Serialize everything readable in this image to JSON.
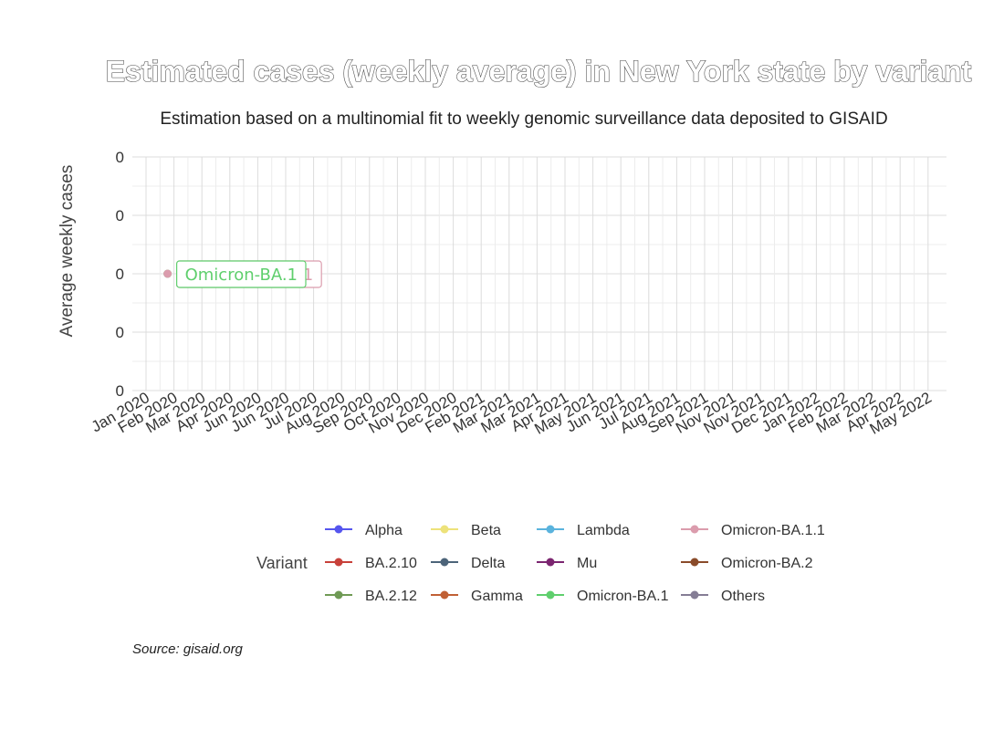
{
  "chart_data": {
    "type": "line",
    "title": "Estimated cases (weekly average) in New York state by variant",
    "subtitle": "Estimation based on a multinomial fit to weekly genomic surveillance data deposited to GISAID",
    "xlabel": "",
    "ylabel": "Average weekly cases",
    "caption": "Source: gisaid.org",
    "x_ticks": [
      "Jan 2020",
      "Feb 2020",
      "Mar 2020",
      "Apr 2020",
      "Jun 2020",
      "Jun 2020",
      "Jul 2020",
      "Aug 2020",
      "Sep 2020",
      "Oct 2020",
      "Nov 2020",
      "Dec 2020",
      "Feb 2021",
      "Mar 2021",
      "Mar 2021",
      "Apr 2021",
      "May 2021",
      "Jun 2021",
      "Jul 2021",
      "Aug 2021",
      "Sep 2021",
      "Nov 2021",
      "Nov 2021",
      "Dec 2021",
      "Jan 2022",
      "Feb 2022",
      "Mar 2022",
      "Apr 2022",
      "May 2022"
    ],
    "y_ticks": [
      "0",
      "0",
      "0",
      "0",
      "0"
    ],
    "ylim": [
      -0.05,
      0.05
    ],
    "grid": true,
    "legend_title": "Variant",
    "legend_position": "bottom",
    "series": [
      {
        "name": "Alpha",
        "color": "#5555ee"
      },
      {
        "name": "BA.2.10",
        "color": "#c8413a"
      },
      {
        "name": "BA.2.12",
        "color": "#6f9a55"
      },
      {
        "name": "Beta",
        "color": "#ede27a"
      },
      {
        "name": "Delta",
        "color": "#4c6479"
      },
      {
        "name": "Gamma",
        "color": "#c06035"
      },
      {
        "name": "Lambda",
        "color": "#5ab3dd"
      },
      {
        "name": "Mu",
        "color": "#7b2570"
      },
      {
        "name": "Omicron-BA.1",
        "color": "#5fcf6d",
        "x": [
          "Feb 2020"
        ],
        "values": [
          0
        ],
        "label": "Omicron-BA.1"
      },
      {
        "name": "Omicron-BA.1.1",
        "color": "#db9cad",
        "x": [
          "Feb 2020"
        ],
        "values": [
          0
        ],
        "label": "Omicron-BA.1.1"
      },
      {
        "name": "Omicron-BA.2",
        "color": "#8a4b2a"
      },
      {
        "name": "Others",
        "color": "#857d95"
      }
    ]
  }
}
